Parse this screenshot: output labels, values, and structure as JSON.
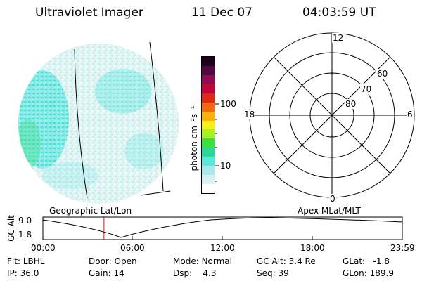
{
  "header": {
    "instrument": "Ultraviolet Imager",
    "date": "11 Dec 07",
    "time": "04:03:59 UT"
  },
  "colorbar": {
    "unit_label": "photon cm⁻²s⁻¹",
    "ticks": [
      "100",
      "10"
    ]
  },
  "polar_plot": {
    "mlt_labels": {
      "top": "12",
      "left": "18",
      "right": "6",
      "bottom": "0"
    },
    "lat_labels": [
      "60",
      "70",
      "80"
    ]
  },
  "timeline": {
    "left_caption": "Geographic Lat/Lon",
    "right_caption": "Apex MLat/MLT",
    "y_axis_label": "GC Alt",
    "y_max": "9.0",
    "y_min": "1.8",
    "x_ticks": [
      "00:00",
      "06:00",
      "12:00",
      "18:00",
      "23:59"
    ],
    "current_time_fraction": 0.17,
    "marker_color": "#ff0000"
  },
  "status": {
    "flt_label": "Flt:",
    "flt_value": "LBHL",
    "ip_label": "IP:",
    "ip_value": "36.0",
    "door_label": "Door:",
    "door_value": "Open",
    "gain_label": "Gain:",
    "gain_value": "14",
    "mode_label": "Mode:",
    "mode_value": "Normal",
    "dsp_label": "Dsp:",
    "dsp_value": "4.3",
    "gcalt_label": "GC Alt:",
    "gcalt_value": "3.4 Re",
    "seq_label": "Seq:",
    "seq_value": "39",
    "glat_label": "GLat:",
    "glat_value": "-1.8",
    "glon_label": "GLon:",
    "glon_value": "189.9"
  },
  "colors": {
    "colorbar": [
      "#ffffff",
      "#d8f2f2",
      "#a8e8ec",
      "#5ce8d8",
      "#2ad89a",
      "#3ce03c",
      "#a8f028",
      "#f4f018",
      "#fcb010",
      "#f46810",
      "#e02818",
      "#c00838",
      "#900c52",
      "#500840",
      "#20001c"
    ]
  }
}
